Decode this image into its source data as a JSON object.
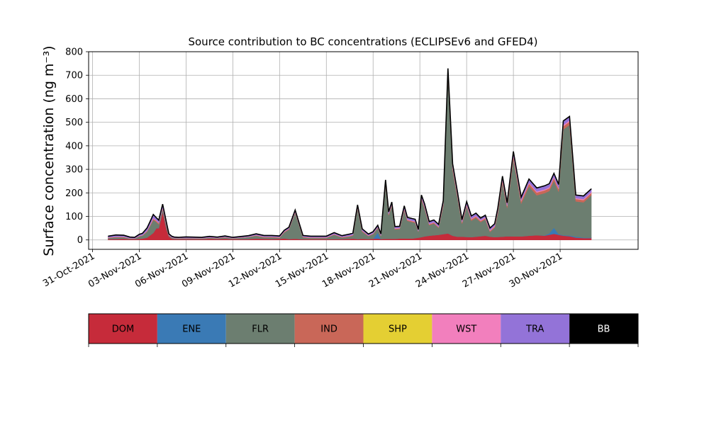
{
  "chart_data": {
    "type": "area",
    "title": "Source contribution to BC concentrations (ECLIPSEv6 and GFED4)",
    "ylabel": "Surface concentration (ng m⁻³)",
    "xlabel": "",
    "ylim": [
      -40,
      800
    ],
    "yticks": [
      0,
      100,
      200,
      300,
      400,
      500,
      600,
      700,
      800
    ],
    "xlim_day": [
      -0.25,
      35.0
    ],
    "x_tick_labels": [
      "31-Oct-2021",
      "03-Nov-2021",
      "06-Nov-2021",
      "09-Nov-2021",
      "12-Nov-2021",
      "15-Nov-2021",
      "18-Nov-2021",
      "21-Nov-2021",
      "24-Nov-2021",
      "27-Nov-2021",
      "30-Nov-2021"
    ],
    "grid": true,
    "legend_placement": "bottom colorbar",
    "x_dates": [
      "2021-11-01",
      "2021-11-01",
      "2021-11-02",
      "2021-11-02",
      "2021-11-02",
      "2021-11-03",
      "2021-11-03",
      "2021-11-03",
      "2021-11-03",
      "2021-11-03",
      "2021-11-04",
      "2021-11-04",
      "2021-11-04",
      "2021-11-04",
      "2021-11-04",
      "2021-11-05",
      "2021-11-05",
      "2021-11-05",
      "2021-11-06",
      "2021-11-07",
      "2021-11-07",
      "2021-11-08",
      "2021-11-08",
      "2021-11-09",
      "2021-11-10",
      "2021-11-10",
      "2021-11-11",
      "2021-11-11",
      "2021-11-12",
      "2021-11-12",
      "2021-11-12",
      "2021-11-13",
      "2021-11-13",
      "2021-11-14",
      "2021-11-15",
      "2021-11-15",
      "2021-11-16",
      "2021-11-16",
      "2021-11-16",
      "2021-11-17",
      "2021-11-17",
      "2021-11-17",
      "2021-11-18",
      "2021-11-18",
      "2021-11-18",
      "2021-11-19",
      "2021-11-19",
      "2021-11-19",
      "2021-11-19",
      "2021-11-20",
      "2021-11-20",
      "2021-11-20",
      "2021-11-20",
      "2021-11-21",
      "2021-11-21",
      "2021-11-21",
      "2021-11-21",
      "2021-11-21",
      "2021-11-22",
      "2021-11-22",
      "2021-11-22",
      "2021-11-23",
      "2021-11-23",
      "2021-11-23",
      "2021-11-24",
      "2021-11-24",
      "2021-11-24",
      "2021-11-25",
      "2021-11-25",
      "2021-11-25",
      "2021-11-25",
      "2021-11-26",
      "2021-11-26",
      "2021-11-26",
      "2021-11-26",
      "2021-11-27",
      "2021-11-27",
      "2021-11-28",
      "2021-11-28",
      "2021-11-29",
      "2021-11-29",
      "2021-11-29",
      "2021-11-29",
      "2021-11-30",
      "2021-11-30",
      "2021-12-01",
      "2021-12-01",
      "2021-12-02"
    ],
    "x_day": [
      1.0,
      1.5,
      2.0,
      2.4,
      2.7,
      3.0,
      3.2,
      3.5,
      3.7,
      3.9,
      4.1,
      4.25,
      4.5,
      4.75,
      4.9,
      5.1,
      5.25,
      5.5,
      6.0,
      7.0,
      7.5,
      8.0,
      8.5,
      9.0,
      10.0,
      10.5,
      11.0,
      11.5,
      12.0,
      12.3,
      12.6,
      13.0,
      13.5,
      14.0,
      15.0,
      15.5,
      16.0,
      16.5,
      16.7,
      17.0,
      17.3,
      17.7,
      18.0,
      18.3,
      18.5,
      18.8,
      19.0,
      19.2,
      19.4,
      19.7,
      20.0,
      20.2,
      20.5,
      20.7,
      20.9,
      21.1,
      21.3,
      21.6,
      21.9,
      22.2,
      22.5,
      22.8,
      23.1,
      23.4,
      23.7,
      24.0,
      24.3,
      24.6,
      24.9,
      25.2,
      25.5,
      25.8,
      26.0,
      26.3,
      26.6,
      27.0,
      27.5,
      28.0,
      28.5,
      29.0,
      29.3,
      29.6,
      29.9,
      30.2,
      30.6,
      31.0,
      31.5,
      32.0
    ],
    "series": [
      {
        "name": "DOM",
        "color": "#c62b3a",
        "values": [
          4,
          4,
          5,
          3,
          3,
          5,
          6,
          10,
          20,
          30,
          50,
          50,
          120,
          45,
          15,
          5,
          4,
          3,
          4,
          3,
          5,
          4,
          5,
          3,
          4,
          6,
          5,
          4,
          5,
          7,
          4,
          5,
          3,
          3,
          3,
          4,
          4,
          5,
          6,
          4,
          5,
          4,
          5,
          6,
          4,
          5,
          5,
          5,
          5,
          6,
          6,
          6,
          6,
          8,
          10,
          12,
          15,
          18,
          20,
          22,
          25,
          28,
          18,
          14,
          14,
          13,
          12,
          14,
          16,
          18,
          14,
          12,
          13,
          14,
          16,
          15,
          15,
          18,
          20,
          18,
          22,
          26,
          22,
          18,
          16,
          10,
          8,
          8
        ]
      },
      {
        "name": "ENE",
        "color": "#3a7ab5",
        "values": [
          0,
          0,
          0,
          0,
          0,
          0,
          0,
          0,
          0,
          0,
          1,
          1,
          1,
          1,
          0,
          0,
          0,
          0,
          0,
          0,
          0,
          0,
          0,
          0,
          0,
          0,
          0,
          0,
          0,
          0,
          0,
          0,
          0,
          0,
          0,
          0,
          0,
          0,
          0,
          0,
          0,
          0,
          0,
          25,
          0,
          0,
          0,
          0,
          0,
          0,
          0,
          0,
          0,
          0,
          0,
          0,
          0,
          0,
          0,
          0,
          0,
          0,
          0,
          0,
          0,
          0,
          0,
          0,
          0,
          0,
          0,
          0,
          0,
          0,
          0,
          0,
          0,
          0,
          0,
          1,
          6,
          26,
          3,
          2,
          3,
          4,
          2,
          2
        ]
      },
      {
        "name": "FLR",
        "color": "#6c7e70",
        "values": [
          4,
          7,
          6,
          3,
          2,
          10,
          12,
          25,
          40,
          55,
          25,
          15,
          10,
          10,
          3,
          4,
          3,
          3,
          3,
          3,
          4,
          3,
          6,
          3,
          8,
          12,
          6,
          7,
          4,
          25,
          40,
          110,
          8,
          5,
          5,
          18,
          6,
          10,
          12,
          130,
          30,
          12,
          20,
          20,
          12,
          230,
          100,
          140,
          40,
          40,
          120,
          75,
          70,
          65,
          25,
          160,
          120,
          45,
          50,
          30,
          120,
          670,
          280,
          170,
          55,
          130,
          70,
          80,
          60,
          70,
          20,
          40,
          100,
          230,
          120,
          330,
          140,
          210,
          170,
          180,
          180,
          200,
          180,
          450,
          470,
          150,
          150,
          180
        ]
      },
      {
        "name": "IND",
        "color": "#c96758",
        "values": [
          2,
          2,
          2,
          1,
          1,
          2,
          2,
          3,
          4,
          5,
          5,
          5,
          5,
          5,
          2,
          1,
          1,
          1,
          1,
          1,
          1,
          1,
          1,
          1,
          1,
          2,
          2,
          2,
          2,
          3,
          3,
          3,
          2,
          2,
          2,
          2,
          2,
          2,
          3,
          4,
          4,
          2,
          2,
          3,
          2,
          6,
          4,
          5,
          3,
          3,
          6,
          4,
          4,
          4,
          2,
          6,
          6,
          4,
          4,
          3,
          8,
          12,
          10,
          8,
          6,
          6,
          6,
          6,
          5,
          5,
          5,
          5,
          8,
          10,
          8,
          12,
          10,
          12,
          12,
          12,
          12,
          12,
          12,
          14,
          14,
          10,
          10,
          10
        ]
      },
      {
        "name": "SHP",
        "color": "#e4cf33",
        "values": [
          0,
          0,
          0,
          0,
          0,
          0,
          0,
          0,
          0,
          0,
          0,
          0,
          0,
          0,
          0,
          0,
          0,
          0,
          0,
          0,
          0,
          0,
          0,
          0,
          0,
          0,
          0,
          0,
          0,
          0,
          0,
          0,
          0,
          0,
          0,
          0,
          0,
          0,
          0,
          0,
          0,
          0,
          0,
          0,
          0,
          0,
          0,
          0,
          0,
          0,
          0,
          0,
          0,
          0,
          0,
          0,
          0,
          0,
          0,
          0,
          0,
          0,
          0,
          0,
          0,
          0,
          0,
          0,
          0,
          0,
          0,
          0,
          0,
          0,
          0,
          0,
          0,
          0,
          0,
          0,
          0,
          0,
          0,
          0,
          0,
          0,
          0,
          0
        ]
      },
      {
        "name": "WST",
        "color": "#f27fbd",
        "values": [
          1,
          1,
          1,
          1,
          1,
          1,
          1,
          2,
          2,
          3,
          2,
          2,
          3,
          2,
          1,
          1,
          1,
          1,
          1,
          1,
          1,
          1,
          1,
          1,
          1,
          1,
          1,
          1,
          1,
          1,
          1,
          2,
          1,
          1,
          1,
          1,
          1,
          1,
          1,
          2,
          1,
          1,
          1,
          1,
          1,
          3,
          2,
          2,
          2,
          2,
          2,
          2,
          2,
          2,
          1,
          2,
          2,
          2,
          2,
          2,
          3,
          4,
          3,
          3,
          2,
          3,
          3,
          3,
          3,
          3,
          3,
          3,
          3,
          4,
          3,
          4,
          4,
          4,
          4,
          4,
          4,
          4,
          4,
          5,
          5,
          4,
          4,
          4
        ]
      },
      {
        "name": "TRA",
        "color": "#9373d8",
        "values": [
          4,
          6,
          5,
          3,
          3,
          5,
          6,
          10,
          12,
          14,
          10,
          10,
          12,
          8,
          4,
          3,
          2,
          2,
          3,
          2,
          3,
          2,
          3,
          2,
          3,
          4,
          4,
          4,
          4,
          4,
          5,
          6,
          4,
          4,
          4,
          5,
          4,
          6,
          6,
          8,
          6,
          5,
          6,
          6,
          6,
          10,
          8,
          8,
          6,
          6,
          10,
          8,
          8,
          8,
          6,
          10,
          10,
          8,
          8,
          8,
          10,
          14,
          12,
          12,
          8,
          10,
          10,
          10,
          8,
          8,
          8,
          8,
          10,
          12,
          10,
          14,
          12,
          14,
          14,
          14,
          14,
          14,
          14,
          16,
          16,
          12,
          12,
          12
        ]
      },
      {
        "name": "BB",
        "color": "#000000",
        "values": [
          1,
          1,
          1,
          1,
          1,
          1,
          1,
          1,
          1,
          1,
          1,
          1,
          1,
          1,
          1,
          1,
          1,
          1,
          1,
          1,
          1,
          1,
          1,
          1,
          1,
          1,
          1,
          1,
          1,
          1,
          1,
          1,
          1,
          1,
          1,
          1,
          1,
          1,
          1,
          1,
          1,
          1,
          1,
          1,
          1,
          1,
          1,
          1,
          1,
          1,
          1,
          1,
          1,
          1,
          1,
          1,
          1,
          1,
          1,
          1,
          1,
          1,
          1,
          1,
          1,
          1,
          1,
          1,
          1,
          1,
          1,
          1,
          1,
          1,
          1,
          1,
          1,
          1,
          1,
          1,
          1,
          1,
          1,
          1,
          1,
          1,
          1,
          1
        ]
      }
    ],
    "legend_labels": [
      "DOM",
      "ENE",
      "FLR",
      "IND",
      "SHP",
      "WST",
      "TRA",
      "BB"
    ]
  }
}
